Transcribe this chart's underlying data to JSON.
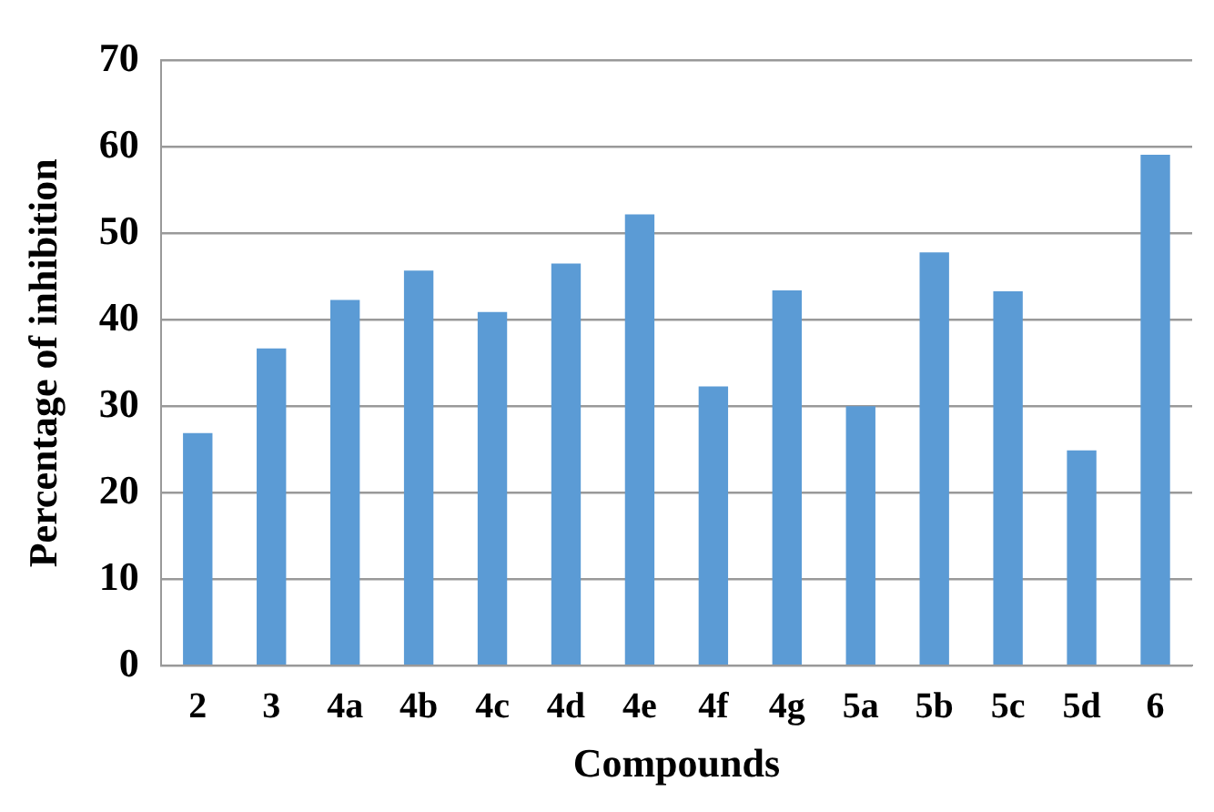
{
  "chart_data": {
    "type": "bar",
    "xlabel": "Compounds",
    "ylabel": "Percentage of inhibition",
    "categories": [
      "2",
      "3",
      "4a",
      "4b",
      "4c",
      "4d",
      "4e",
      "4f",
      "4g",
      "5a",
      "5b",
      "5c",
      "5d",
      "6"
    ],
    "values": [
      26.9,
      36.7,
      42.3,
      45.7,
      40.9,
      46.5,
      52.2,
      32.3,
      43.4,
      30.0,
      47.8,
      43.3,
      24.9,
      59.1
    ],
    "color": "#5b9bd5",
    "ylim": [
      0,
      70
    ],
    "yticks": [
      0,
      10,
      20,
      30,
      40,
      50,
      60,
      70
    ],
    "grid": "y",
    "legend": false
  }
}
